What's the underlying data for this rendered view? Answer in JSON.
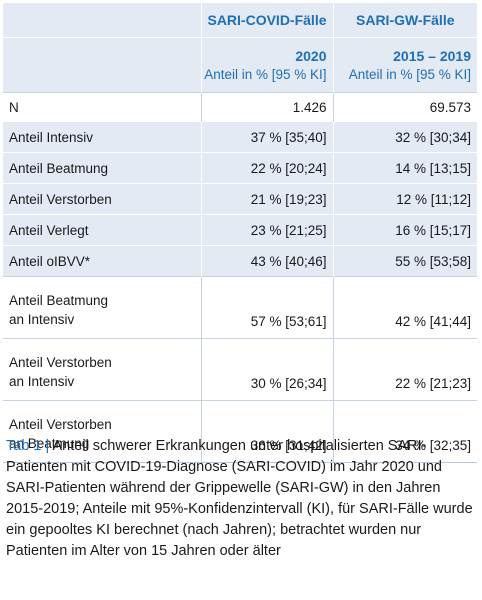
{
  "table": {
    "header": {
      "col1_name": "SARI-COVID-Fälle",
      "col2_name": "SARI-GW-Fälle",
      "col1_year": "2020",
      "col2_year": "2015 – 2019",
      "col1_sub": "Anteil in % [95 % KI]",
      "col2_sub": "Anteil in % [95 % KI]"
    },
    "rows": [
      {
        "label": "N",
        "covid": "1.426",
        "gw": "69.573"
      },
      {
        "label": "Anteil Intensiv",
        "covid": "37 % [35;40]",
        "gw": "32 % [30;34]"
      },
      {
        "label": "Anteil Beatmung",
        "covid": "22 % [20;24]",
        "gw": "14 % [13;15]"
      },
      {
        "label": "Anteil Verstorben",
        "covid": "21 % [19;23]",
        "gw": "12 % [11;12]"
      },
      {
        "label": "Anteil Verlegt",
        "covid": "23 % [21;25]",
        "gw": "16 % [15;17]"
      },
      {
        "label": "Anteil oIBVV*",
        "covid": "43 % [40;46]",
        "gw": "55 % [53;58]"
      },
      {
        "label_line1": "Anteil Beatmung",
        "label_line2": "an Intensiv",
        "covid": "57 % [53;61]",
        "gw": "42 % [41;44]"
      },
      {
        "label_line1": "Anteil Verstorben",
        "label_line2": "an Intensiv",
        "covid": "30 % [26;34]",
        "gw": "22 % [21;23]"
      },
      {
        "label_line1": "Anteil Verstorben",
        "label_line2": "an Beatmung",
        "covid": "36 % [31;42]",
        "gw": "34 % [32;35]"
      }
    ]
  },
  "caption": {
    "tag": "Tab 1 |",
    "text": " Anteil schwerer Erkrankungen unter hospitalisierten SARI-Patienten mit COVID-19-Diagnose (SARI-COVID) im Jahr 2020 und SARI-Patienten während der Grippewelle (SARI-GW) in den Jahren 2015-2019; Anteile mit 95%-Konfidenzintervall (KI), für SARI-Fälle wurde ein gepooltes KI berechnet (nach Jahren); betrachtet wurden nur Patienten im Alter von 15 Jahren oder älter"
  }
}
